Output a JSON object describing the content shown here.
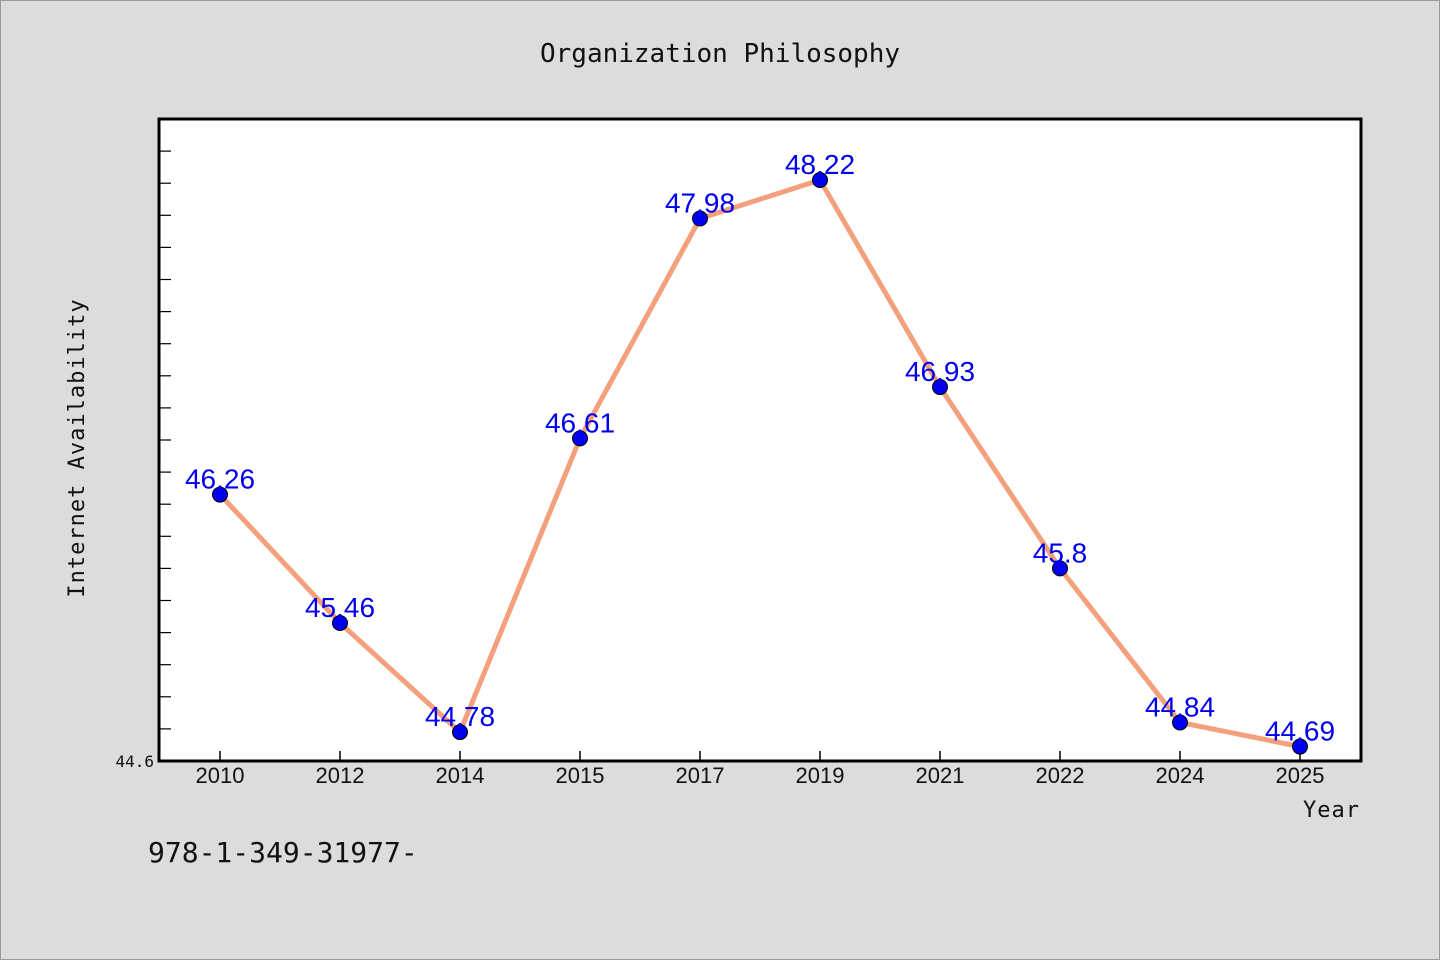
{
  "chart_data": {
    "type": "line",
    "title": "Organization Philosophy",
    "xlabel": "Year",
    "ylabel": "Internet Availability",
    "categories": [
      "2010",
      "2012",
      "2014",
      "2015",
      "2017",
      "2019",
      "2021",
      "2022",
      "2024",
      "2025"
    ],
    "series": [
      {
        "values": [
          46.26,
          45.46,
          44.78,
          46.61,
          47.98,
          48.22,
          46.93,
          45.8,
          44.84,
          44.69
        ],
        "labels": [
          "46.26",
          "45.46",
          "44.78",
          "46.61",
          "47.98",
          "48.22",
          "46.93",
          "45.8",
          "44.84",
          "44.69"
        ]
      }
    ],
    "ylim": [
      44.6,
      48.6
    ],
    "yticks_labeled": [
      "44.6"
    ],
    "grid": false,
    "line_color": "#f4a07c",
    "marker_color": "#0000ee",
    "label_color": "#0000ee"
  },
  "footnote": "978-1-349-31977-"
}
